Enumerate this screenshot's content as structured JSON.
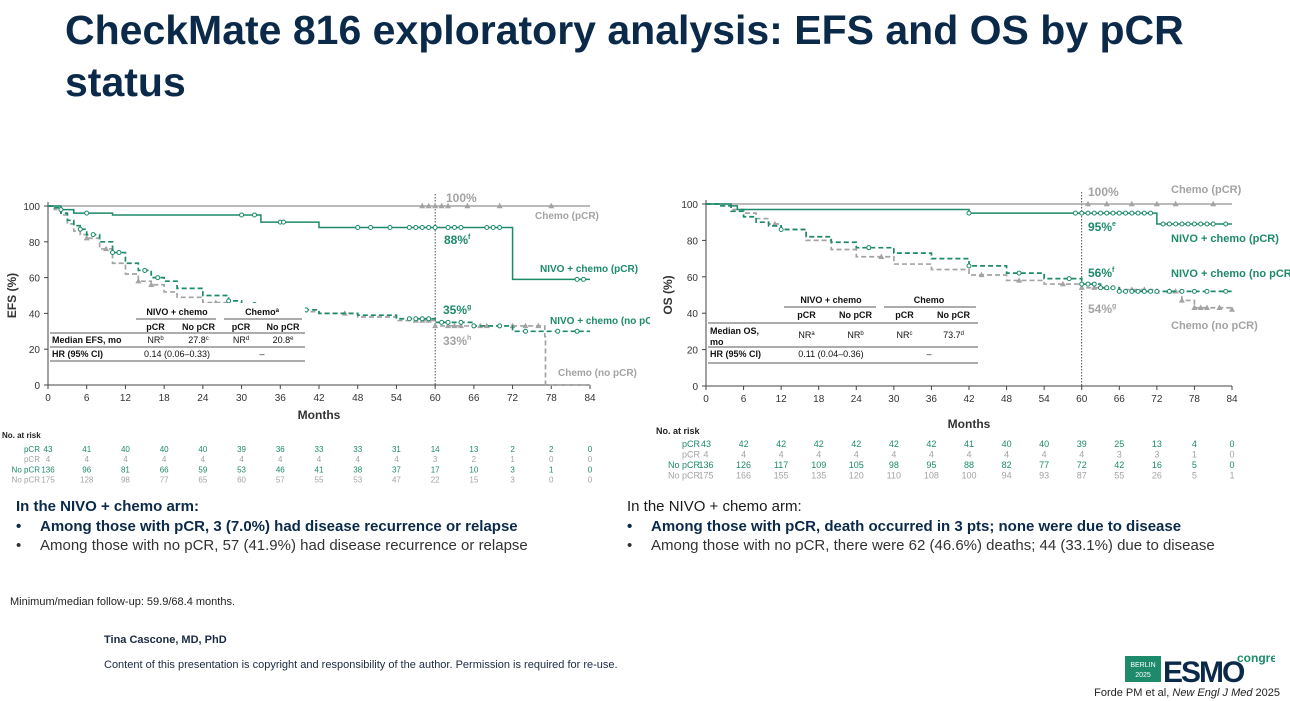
{
  "title": "CheckMate 816 exploratory analysis: EFS and OS by pCR status",
  "colors": {
    "nivo": "#1d8a6a",
    "chemo": "#a3a3a3",
    "title": "#0b2a4a"
  },
  "chart_data": [
    {
      "id": "efs",
      "type": "line",
      "ylabel": "EFS (%)",
      "xlabel": "Months",
      "xlim": [
        0,
        84
      ],
      "ylim": [
        0,
        100
      ],
      "xticks": [
        0,
        6,
        12,
        18,
        24,
        30,
        36,
        42,
        48,
        54,
        60,
        66,
        72,
        78,
        84
      ],
      "yticks": [
        0,
        20,
        40,
        60,
        80,
        100
      ],
      "landmark_month": 60,
      "series": [
        {
          "name": "NIVO + chemo (pCR)",
          "color": "#1d8a6a",
          "dash": false,
          "x": [
            0,
            1,
            2,
            3,
            4,
            6,
            10,
            20,
            30,
            33,
            36,
            42,
            50,
            60,
            65,
            70,
            71,
            72,
            84
          ],
          "y": [
            100,
            100,
            98,
            98,
            96,
            96,
            95,
            95,
            95,
            91,
            91,
            88,
            88,
            88,
            88,
            88,
            88,
            59,
            59
          ],
          "censor_x": [
            2,
            6,
            30,
            32,
            36,
            36.5,
            48,
            50,
            53,
            56,
            57,
            58,
            59,
            60,
            62,
            63,
            64,
            68,
            69,
            70,
            82,
            83
          ]
        },
        {
          "name": "Chemo (pCR)",
          "color": "#a3a3a3",
          "dash": false,
          "x": [
            0,
            84
          ],
          "y": [
            100,
            100
          ],
          "censor_x": [
            58,
            59,
            60,
            61,
            62,
            65,
            70,
            78
          ]
        },
        {
          "name": "NIVO + chemo (no pCR)",
          "color": "#1d8a6a",
          "dash": true,
          "x": [
            0,
            1,
            2,
            3,
            4,
            5,
            6,
            8,
            10,
            12,
            14,
            16,
            18,
            20,
            24,
            28,
            30,
            36,
            42,
            48,
            54,
            60,
            66,
            72,
            84
          ],
          "y": [
            100,
            99,
            96,
            92,
            89,
            87,
            84,
            80,
            74,
            68,
            64,
            60,
            58,
            54,
            50,
            47,
            45,
            42,
            40,
            39,
            37,
            35,
            33,
            30,
            30
          ],
          "censor_x": [
            5,
            7,
            10,
            11,
            15,
            17,
            28,
            32,
            40,
            56,
            57,
            58,
            59,
            61,
            62,
            64,
            66,
            70,
            74,
            79,
            82
          ]
        },
        {
          "name": "Chemo (no pCR)",
          "color": "#a3a3a3",
          "dash": true,
          "x": [
            0,
            1,
            2,
            3,
            4,
            5,
            6,
            8,
            10,
            12,
            14,
            16,
            18,
            20,
            24,
            28,
            30,
            36,
            42,
            48,
            54,
            60,
            66,
            72,
            77,
            77.1,
            84
          ],
          "y": [
            100,
            98,
            95,
            90,
            86,
            84,
            82,
            76,
            68,
            62,
            58,
            56,
            52,
            49,
            46,
            43,
            42,
            41,
            40,
            38,
            36,
            33,
            33,
            33,
            27,
            0,
            0
          ],
          "censor_x": [
            6,
            9,
            14,
            16,
            26,
            38,
            46,
            57,
            58,
            59,
            60,
            62,
            63,
            64,
            67,
            68,
            72,
            74,
            76
          ]
        }
      ],
      "series_labels": [
        "Chemo (pCR)",
        "NIVO + chemo (pCR)",
        "NIVO + chemo (no pCR)",
        "Chemo (no pCR)"
      ],
      "annotations": [
        {
          "text": "100%",
          "color": "#a3a3a3"
        },
        {
          "text": "88%",
          "sup": "f",
          "color": "#1d8a6a"
        },
        {
          "text": "35%",
          "sup": "g",
          "color": "#1d8a6a"
        },
        {
          "text": "33%",
          "sup": "h",
          "color": "#a3a3a3"
        }
      ],
      "inset_table": {
        "group_headers": [
          "NIVO + chemo",
          "Chemo",
          "a"
        ],
        "col_headers": [
          "pCR",
          "No pCR",
          "pCR",
          "No pCR"
        ],
        "rows": [
          {
            "label": "Median EFS, mo",
            "cells": [
              "NR",
              "27.8",
              "NR",
              "20.8"
            ],
            "sups": [
              "b",
              "c",
              "d",
              "e"
            ]
          },
          {
            "label": "HR (95% CI)",
            "cells": [
              "0.14 (0.06–0.33)",
              "–"
            ]
          }
        ]
      },
      "at_risk": {
        "title": "No. at risk",
        "rows": [
          {
            "label": "pCR",
            "color": "#1d8a6a",
            "values": [
              43,
              41,
              40,
              40,
              40,
              39,
              36,
              33,
              33,
              31,
              14,
              13,
              2,
              2,
              0
            ]
          },
          {
            "label": "pCR",
            "color": "#a3a3a3",
            "values": [
              4,
              4,
              4,
              4,
              4,
              4,
              4,
              4,
              4,
              4,
              3,
              2,
              1,
              0,
              0
            ]
          },
          {
            "label": "No pCR",
            "color": "#1d8a6a",
            "values": [
              136,
              96,
              81,
              66,
              59,
              53,
              46,
              41,
              38,
              37,
              17,
              10,
              3,
              1,
              0
            ]
          },
          {
            "label": "No pCR",
            "color": "#a3a3a3",
            "values": [
              175,
              128,
              98,
              77,
              65,
              60,
              57,
              55,
              53,
              47,
              22,
              15,
              3,
              0,
              0
            ]
          }
        ]
      }
    },
    {
      "id": "os",
      "type": "line",
      "ylabel": "OS (%)",
      "xlabel": "Months",
      "xlim": [
        0,
        84
      ],
      "ylim": [
        0,
        100
      ],
      "xticks": [
        0,
        6,
        12,
        18,
        24,
        30,
        36,
        42,
        48,
        54,
        60,
        66,
        72,
        78,
        84
      ],
      "yticks": [
        0,
        20,
        40,
        60,
        80,
        100
      ],
      "landmark_month": 60,
      "series": [
        {
          "name": "NIVO + chemo (pCR)",
          "color": "#1d8a6a",
          "dash": false,
          "x": [
            0,
            2,
            4,
            5,
            8,
            20,
            40,
            42,
            50,
            60,
            71,
            72,
            84
          ],
          "y": [
            100,
            100,
            99,
            97,
            97,
            97,
            97,
            95,
            95,
            95,
            95,
            89,
            89
          ],
          "censor_x": [
            42,
            59,
            60,
            61,
            62,
            63,
            64,
            65,
            66,
            67,
            68,
            69,
            70,
            71,
            73,
            74,
            75,
            76,
            77,
            78,
            79,
            80,
            81,
            83
          ]
        },
        {
          "name": "Chemo (pCR)",
          "color": "#a3a3a3",
          "dash": false,
          "x": [
            0,
            84
          ],
          "y": [
            100,
            100
          ],
          "censor_x": [
            61,
            64,
            68,
            72,
            75,
            81
          ]
        },
        {
          "name": "NIVO + chemo (no pCR)",
          "color": "#1d8a6a",
          "dash": true,
          "x": [
            0,
            2,
            4,
            6,
            8,
            10,
            12,
            16,
            20,
            24,
            30,
            36,
            42,
            48,
            54,
            60,
            63,
            66,
            72,
            84
          ],
          "y": [
            100,
            99,
            96,
            93,
            90,
            88,
            86,
            82,
            79,
            76,
            73,
            70,
            66,
            62,
            59,
            56,
            54,
            52,
            52,
            52
          ],
          "censor_x": [
            12,
            26,
            42,
            50,
            58,
            60,
            61,
            62,
            63,
            64,
            65,
            66,
            67,
            68,
            69,
            70,
            71,
            72,
            74,
            76,
            78,
            80,
            83
          ]
        },
        {
          "name": "Chemo (no pCR)",
          "color": "#a3a3a3",
          "dash": true,
          "x": [
            0,
            2,
            4,
            6,
            8,
            10,
            12,
            16,
            20,
            24,
            30,
            36,
            42,
            48,
            54,
            60,
            66,
            72,
            76,
            78,
            84
          ],
          "y": [
            100,
            99,
            97,
            95,
            92,
            89,
            86,
            80,
            75,
            71,
            67,
            64,
            61,
            58,
            56,
            54,
            53,
            52,
            47,
            43,
            42
          ],
          "censor_x": [
            11,
            28,
            44,
            50,
            57,
            60,
            62,
            64,
            66,
            68,
            70,
            72,
            74,
            75,
            76,
            78,
            79,
            80,
            82,
            84
          ]
        }
      ],
      "series_labels": [
        "Chemo (pCR)",
        "NIVO + chemo (pCR)",
        "NIVO + chemo (no pCR)",
        "Chemo (no pCR)"
      ],
      "annotations": [
        {
          "text": "100%",
          "color": "#a3a3a3"
        },
        {
          "text": "95%",
          "sup": "e",
          "color": "#1d8a6a"
        },
        {
          "text": "56%",
          "sup": "f",
          "color": "#1d8a6a"
        },
        {
          "text": "54%",
          "sup": "g",
          "color": "#a3a3a3"
        }
      ],
      "inset_table": {
        "group_headers": [
          "NIVO + chemo",
          "Chemo"
        ],
        "col_headers": [
          "pCR",
          "No pCR",
          "pCR",
          "No pCR"
        ],
        "rows": [
          {
            "label": "Median OS, mo",
            "cells": [
              "NR",
              "NR",
              "NR",
              "73.7"
            ],
            "sups": [
              "a",
              "b",
              "c",
              "d"
            ]
          },
          {
            "label": "HR (95% CI)",
            "cells": [
              "0.11 (0.04–0.36)",
              "–"
            ]
          }
        ]
      },
      "at_risk": {
        "title": "No. at risk",
        "rows": [
          {
            "label": "pCR",
            "color": "#1d8a6a",
            "values": [
              43,
              42,
              42,
              42,
              42,
              42,
              42,
              41,
              40,
              40,
              39,
              25,
              13,
              4,
              0
            ]
          },
          {
            "label": "pCR",
            "color": "#a3a3a3",
            "values": [
              4,
              4,
              4,
              4,
              4,
              4,
              4,
              4,
              4,
              4,
              4,
              3,
              3,
              1,
              0
            ]
          },
          {
            "label": "No pCR",
            "color": "#1d8a6a",
            "values": [
              136,
              126,
              117,
              109,
              105,
              98,
              95,
              88,
              82,
              77,
              72,
              42,
              16,
              5,
              0
            ]
          },
          {
            "label": "No pCR",
            "color": "#a3a3a3",
            "values": [
              175,
              166,
              155,
              135,
              120,
              110,
              108,
              100,
              94,
              93,
              87,
              55,
              26,
              5,
              1
            ]
          }
        ]
      }
    }
  ],
  "efs_bullets": {
    "heading": "In the NIVO + chemo arm:",
    "items": [
      "Among those with pCR, 3 (7.0%) had disease recurrence or relapse",
      "Among those with no pCR, 57 (41.9%) had disease recurrence or relapse"
    ]
  },
  "os_bullets": {
    "heading": "In the NIVO + chemo arm:",
    "items": [
      "Among those with pCR, death occurred in 3 pts; none were due to disease",
      "Among those with no pCR, there were 62 (46.6%) deaths; 44 (33.1%) due to disease"
    ]
  },
  "followup": "Minimum/median follow-up: 59.9/68.4 months.",
  "author": "Tina Cascone, MD, PhD",
  "copyright": "Content of this presentation is copyright and responsibility of the author. Permission is required for re-use.",
  "reference": {
    "authors": "Forde PM et al, ",
    "journal": "New Engl J Med",
    "year": " 2025"
  },
  "logo": {
    "city": "BERLIN",
    "year": "2025",
    "brand": "ESMO",
    "word": "congress"
  }
}
